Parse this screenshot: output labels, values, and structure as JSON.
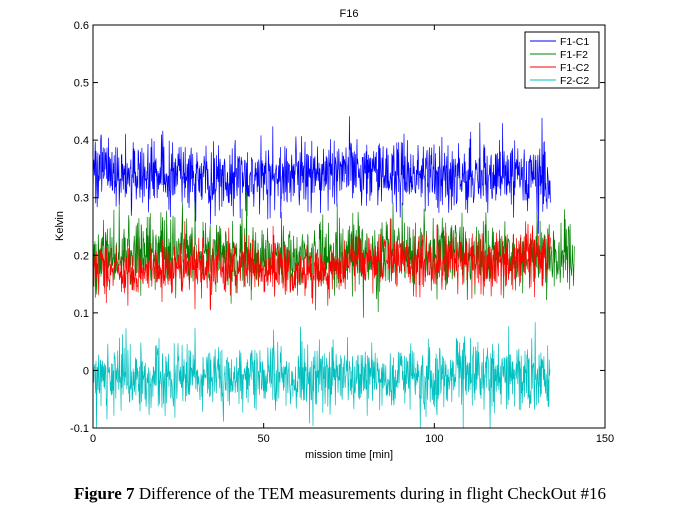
{
  "chart_data": {
    "type": "line",
    "title": "F16",
    "xlabel": "mission time [min]",
    "ylabel": "Kelvin",
    "xlim": [
      0,
      150
    ],
    "ylim": [
      -0.1,
      0.6
    ],
    "xticks": [
      0,
      50,
      100,
      150
    ],
    "yticks": [
      -0.1,
      0,
      0.1,
      0.2,
      0.3,
      0.4,
      0.5,
      0.6
    ],
    "ytick_labels": [
      "-0.1",
      "0",
      "0.1",
      "0.2",
      "0.3",
      "0.4",
      "0.5",
      "0.6"
    ],
    "grid": false,
    "legend_position": "top-right",
    "series": [
      {
        "name": "F1-C1",
        "color": "#0000ff",
        "x_end": 134,
        "mean": 0.34,
        "spread": 0.03,
        "x": [
          0,
          10,
          20,
          30,
          40,
          50,
          60,
          70,
          80,
          90,
          100,
          110,
          120,
          130,
          134
        ],
        "values": [
          0.35,
          0.34,
          0.34,
          0.34,
          0.33,
          0.34,
          0.34,
          0.34,
          0.35,
          0.34,
          0.34,
          0.34,
          0.34,
          0.34,
          0.33
        ]
      },
      {
        "name": "F1-F2",
        "color": "#008000",
        "x_end": 141,
        "mean": 0.2,
        "spread": 0.03,
        "x": [
          0,
          10,
          20,
          30,
          40,
          50,
          60,
          70,
          80,
          90,
          100,
          110,
          120,
          130,
          141
        ],
        "values": [
          0.2,
          0.2,
          0.21,
          0.21,
          0.2,
          0.2,
          0.19,
          0.2,
          0.2,
          0.2,
          0.21,
          0.2,
          0.2,
          0.2,
          0.2
        ]
      },
      {
        "name": "F1-C2",
        "color": "#ff0000",
        "x_end": 134,
        "mean": 0.18,
        "spread": 0.025,
        "x": [
          0,
          10,
          20,
          30,
          40,
          50,
          60,
          70,
          80,
          90,
          100,
          110,
          120,
          130,
          134
        ],
        "values": [
          0.18,
          0.17,
          0.18,
          0.18,
          0.18,
          0.18,
          0.17,
          0.18,
          0.19,
          0.19,
          0.19,
          0.19,
          0.19,
          0.2,
          0.2
        ]
      },
      {
        "name": "F2-C2",
        "color": "#00bfbf",
        "x_end": 134,
        "mean": -0.01,
        "spread": 0.03,
        "x": [
          0,
          10,
          20,
          30,
          40,
          50,
          60,
          70,
          80,
          90,
          100,
          110,
          120,
          130,
          134
        ],
        "values": [
          -0.01,
          -0.01,
          -0.01,
          -0.01,
          -0.01,
          -0.01,
          -0.01,
          -0.01,
          -0.01,
          -0.01,
          -0.01,
          -0.01,
          -0.01,
          -0.01,
          -0.01
        ]
      }
    ]
  },
  "caption": {
    "label": "Figure 7",
    "text": " Difference of the TEM measurements during in flight CheckOut #16"
  }
}
